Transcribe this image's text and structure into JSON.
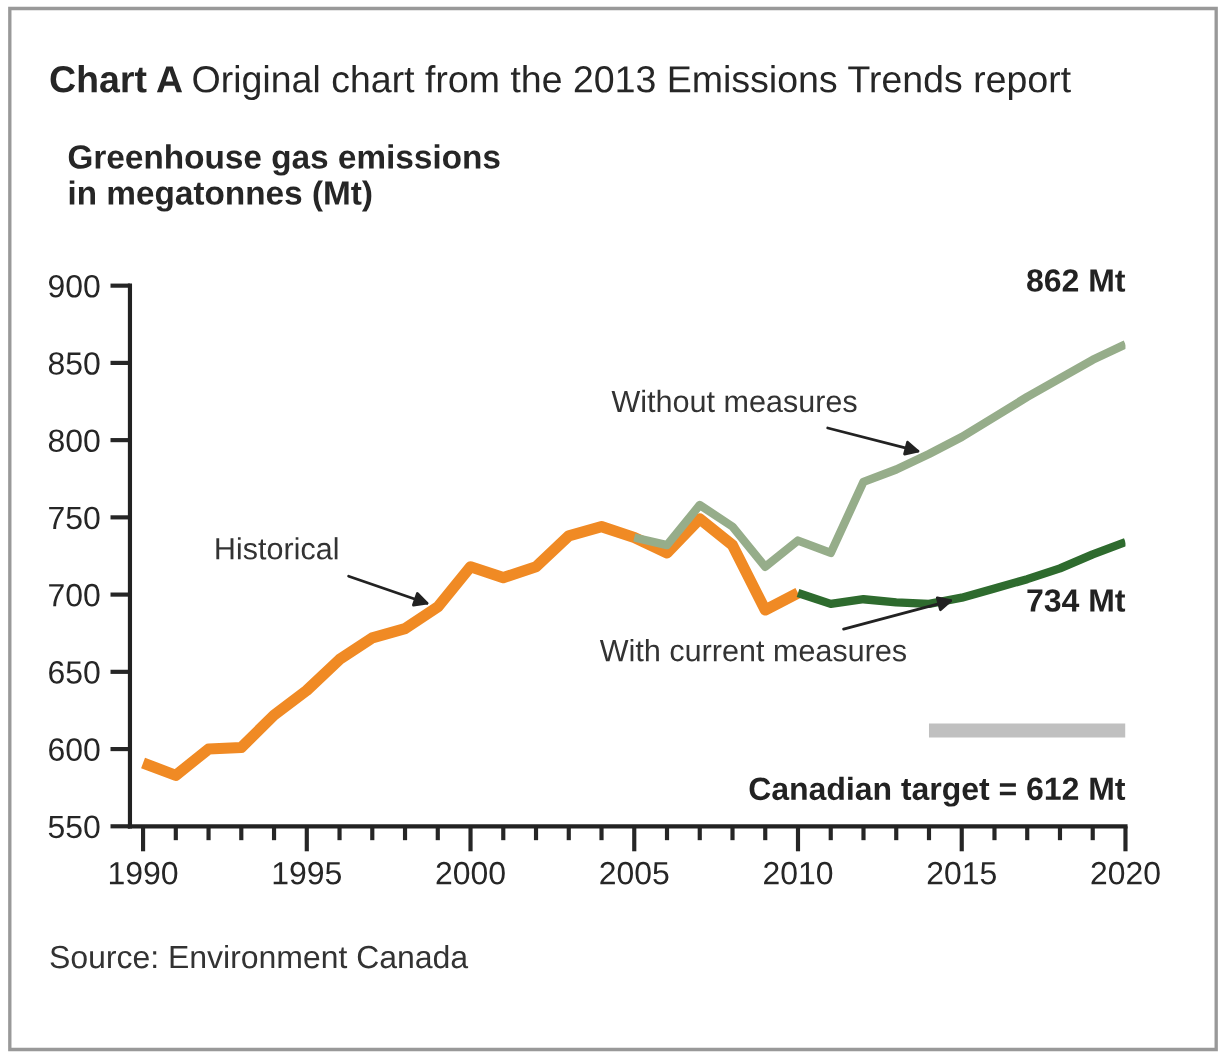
{
  "chart_data": {
    "type": "line",
    "title": "Chart A",
    "subtitle": "Original chart from the 2013 Emissions Trends report",
    "ylabel": "Greenhouse gas emissions\nin megatonnes (Mt)",
    "x": [
      1990,
      1991,
      1992,
      1993,
      1994,
      1995,
      1996,
      1997,
      1998,
      1999,
      2000,
      2001,
      2002,
      2003,
      2004,
      2005,
      2006,
      2007,
      2008,
      2009,
      2010
    ],
    "series": [
      {
        "name": "Historical",
        "color": "#f08a24",
        "values": [
          591,
          583,
          600,
          601,
          622,
          638,
          658,
          672,
          678,
          692,
          718,
          711,
          718,
          738,
          744,
          737,
          727,
          749,
          732,
          690,
          701
        ]
      },
      {
        "name": "Without measures",
        "color": "#96ad8a",
        "x": [
          2005,
          2006,
          2007,
          2008,
          2009,
          2010,
          2011,
          2012,
          2013,
          2014,
          2015,
          2016,
          2017,
          2018,
          2019,
          2020
        ],
        "values": [
          737,
          732,
          758,
          744,
          718,
          735,
          727,
          773,
          781,
          791,
          802,
          815,
          828,
          840,
          852,
          862
        ]
      },
      {
        "name": "With current measures",
        "color": "#2e6b2e",
        "x": [
          2010,
          2011,
          2012,
          2013,
          2014,
          2015,
          2016,
          2017,
          2018,
          2019,
          2020
        ],
        "values": [
          701,
          694,
          697,
          695,
          694,
          698,
          704,
          710,
          717,
          726,
          734
        ]
      },
      {
        "name": "Canadian target = 612 Mt",
        "color": "#c0c0c0",
        "x": [
          2014,
          2020
        ],
        "values": [
          612,
          612
        ]
      }
    ],
    "annotations": [
      {
        "text": "862 Mt",
        "x": 2020,
        "y": 862
      },
      {
        "text": "734 Mt",
        "x": 2020,
        "y": 734
      },
      "Source: Environment Canada"
    ],
    "xlim": [
      1989.6,
      2020
    ],
    "ylim": [
      550,
      900
    ],
    "xticks": [
      1990,
      {
        "value": 1991,
        "label": null
      },
      {
        "value": 1992,
        "label": null
      },
      {
        "value": 1993,
        "label": null
      },
      {
        "value": 1994,
        "label": null
      },
      1995,
      {
        "value": 1996,
        "label": null
      },
      {
        "value": 1997,
        "label": null
      },
      {
        "value": 1998,
        "label": null
      },
      {
        "value": 1999,
        "label": null
      },
      2000,
      {
        "value": 2001,
        "label": null
      },
      {
        "value": 2002,
        "label": null
      },
      {
        "value": 2003,
        "label": null
      },
      {
        "value": 2004,
        "label": null
      },
      2005,
      {
        "value": 2006,
        "label": null
      },
      {
        "value": 2007,
        "label": null
      },
      {
        "value": 2008,
        "label": null
      },
      {
        "value": 2009,
        "label": null
      },
      2010,
      {
        "value": 2011,
        "label": null
      },
      {
        "value": 2012,
        "label": null
      },
      {
        "value": 2013,
        "label": null
      },
      {
        "value": 2014,
        "label": null
      },
      2015,
      {
        "value": 2016,
        "label": null
      },
      {
        "value": 2017,
        "label": null
      },
      {
        "value": 2018,
        "label": null
      },
      {
        "value": 2019,
        "label": null
      },
      2020
    ],
    "yticks": [
      550,
      600,
      650,
      700,
      750,
      800,
      850,
      900
    ],
    "grid": false,
    "legend": false,
    "marker": "none",
    "line_style": "solid"
  }
}
